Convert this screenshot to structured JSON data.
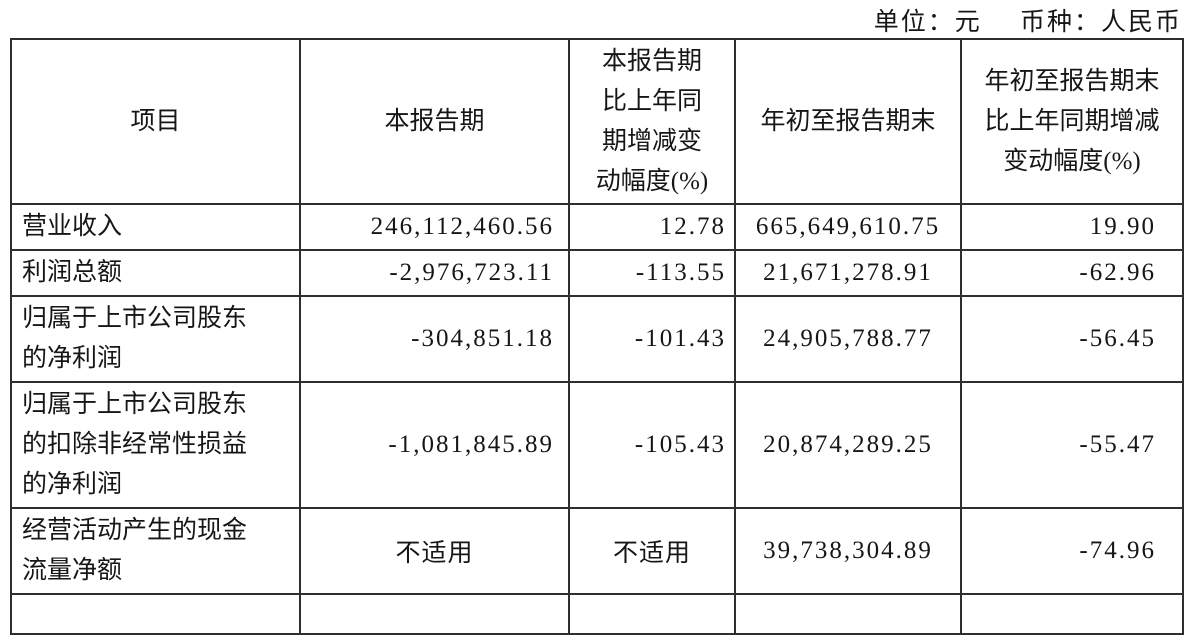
{
  "note": {
    "unit": "单位：元",
    "currency": "币种：人民币"
  },
  "table": {
    "not_applicable_text": "不适用",
    "columns": [
      {
        "label": "项目",
        "lines": [
          "项目"
        ]
      },
      {
        "label": "本报告期",
        "lines": [
          "本报告期"
        ]
      },
      {
        "label": "本报告期比上年同期增减变动幅度(%)",
        "lines": [
          "本报告期",
          "比上年同",
          "期增减变",
          "动幅度(%)"
        ]
      },
      {
        "label": "年初至报告期末",
        "lines": [
          "年初至报告期末"
        ]
      },
      {
        "label": "年初至报告期末比上年同期增减变动幅度(%)",
        "lines": [
          "年初至报告期末",
          "比上年同期增减",
          "变动幅度(%)"
        ]
      }
    ],
    "rows": [
      {
        "label": "营业收入",
        "label_lines": [
          "营业收入"
        ],
        "values": [
          "246,112,460.56",
          "12.78",
          "665,649,610.75",
          "19.90"
        ]
      },
      {
        "label": "利润总额",
        "label_lines": [
          "利润总额"
        ],
        "values": [
          "-2,976,723.11",
          "-113.55",
          "21,671,278.91",
          "-62.96"
        ]
      },
      {
        "label": "归属于上市公司股东的净利润",
        "label_lines": [
          "归属于上市公司股东",
          "的净利润"
        ],
        "values": [
          "-304,851.18",
          "-101.43",
          "24,905,788.77",
          "-56.45"
        ]
      },
      {
        "label": "归属于上市公司股东的扣除非经常性损益的净利润",
        "label_lines": [
          "归属于上市公司股东",
          "的扣除非经常性损益",
          "的净利润"
        ],
        "values": [
          "-1,081,845.89",
          "-105.43",
          "20,874,289.25",
          "-55.47"
        ]
      },
      {
        "label": "经营活动产生的现金流量净额",
        "label_lines": [
          "经营活动产生的现金",
          "流量净额"
        ],
        "values": [
          "不适用",
          "不适用",
          "39,738,304.89",
          "-74.96"
        ]
      }
    ]
  }
}
